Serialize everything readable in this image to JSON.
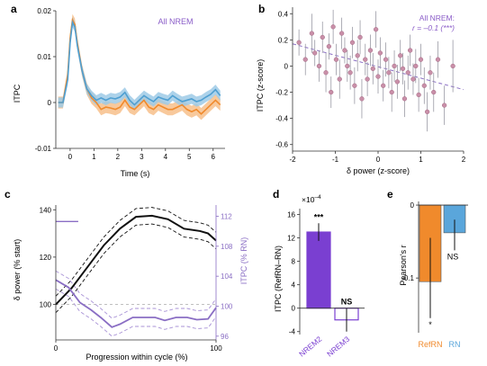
{
  "chart_data": [
    {
      "panel": "a",
      "type": "line",
      "ylabel": "ITPC",
      "xlabel": "Time (s)",
      "annotation": "All NREM",
      "xlim": [
        -0.6,
        6.5
      ],
      "ylim": [
        -0.01,
        0.02
      ],
      "xticks": [
        0,
        1,
        2,
        3,
        4,
        5,
        6
      ],
      "yticks": [
        -0.01,
        0,
        0.01,
        0.02
      ],
      "ytick_labels": [
        "-0.01",
        "0",
        "0.01",
        "0.02"
      ],
      "colors": {
        "orange": "#f08a2c",
        "blue": "#4f9fd1"
      },
      "series": [
        {
          "color": "orange",
          "x": [
            -0.5,
            -0.3,
            -0.1,
            0.0,
            0.1,
            0.2,
            0.3,
            0.5,
            0.7,
            0.9,
            1.1,
            1.3,
            1.5,
            1.7,
            1.9,
            2.1,
            2.3,
            2.5,
            2.7,
            2.9,
            3.1,
            3.3,
            3.5,
            3.7,
            3.9,
            4.1,
            4.3,
            4.5,
            4.7,
            4.9,
            5.1,
            5.3,
            5.5,
            5.7,
            5.9,
            6.1,
            6.3
          ],
          "y": [
            0.0,
            0.0,
            0.006,
            0.014,
            0.018,
            0.017,
            0.013,
            0.007,
            0.003,
            0.001,
            0.0,
            -0.0015,
            -0.001,
            -0.0012,
            -0.0015,
            -0.001,
            0.0005,
            -0.001,
            -0.0015,
            -0.0005,
            0.0005,
            -0.001,
            -0.0015,
            -0.0005,
            -0.001,
            -0.0015,
            -0.0015,
            -0.001,
            -0.0005,
            -0.0015,
            -0.002,
            -0.0015,
            -0.0025,
            -0.0015,
            -0.0005,
            0.0005,
            -0.0005
          ],
          "err": 0.0013
        },
        {
          "color": "blue",
          "x": [
            -0.5,
            -0.3,
            -0.1,
            0.0,
            0.1,
            0.2,
            0.3,
            0.5,
            0.7,
            0.9,
            1.1,
            1.3,
            1.5,
            1.7,
            1.9,
            2.1,
            2.3,
            2.5,
            2.7,
            2.9,
            3.1,
            3.3,
            3.5,
            3.7,
            3.9,
            4.1,
            4.3,
            4.5,
            4.7,
            4.9,
            5.1,
            5.3,
            5.5,
            5.7,
            5.9,
            6.1,
            6.3
          ],
          "y": [
            0.0,
            0.0,
            0.005,
            0.013,
            0.0175,
            0.0165,
            0.0125,
            0.007,
            0.003,
            0.0015,
            0.0005,
            0.001,
            0.0005,
            0.001,
            0.0008,
            0.0012,
            0.0022,
            0.0005,
            -0.0005,
            0.0005,
            0.0015,
            0.0008,
            0.0002,
            0.0012,
            0.0008,
            0.0005,
            0.0015,
            0.0008,
            0.0002,
            0.0005,
            0.0008,
            0.0002,
            0.0005,
            0.0012,
            0.0018,
            0.0028,
            0.0015
          ],
          "err": 0.0011
        }
      ]
    },
    {
      "panel": "b",
      "type": "scatter",
      "ylabel": "ITPC (z-score)",
      "xlabel": "δ power (z-score)",
      "annotation": [
        "All NREM:",
        "r = –0.1 (***)"
      ],
      "xlim": [
        -2,
        2
      ],
      "ylim": [
        -0.65,
        0.45
      ],
      "xticks": [
        -2,
        -1,
        0,
        1,
        2
      ],
      "yticks": [
        -0.6,
        -0.4,
        -0.2,
        0,
        0.2,
        0.4
      ],
      "ytick_labels": [
        "-0.6",
        "-0.4",
        "-0.2",
        "0",
        "0.2",
        "0.4"
      ],
      "point_color": "#c98fa8",
      "fit": {
        "x": [
          -2,
          2
        ],
        "y": [
          0.17,
          -0.18
        ]
      },
      "points": [
        [
          -1.85,
          0.18,
          0.1
        ],
        [
          -1.7,
          0.05,
          0.12
        ],
        [
          -1.55,
          0.25,
          0.15
        ],
        [
          -1.48,
          0.1,
          0.1
        ],
        [
          -1.38,
          0.0,
          0.12
        ],
        [
          -1.3,
          0.22,
          0.12
        ],
        [
          -1.22,
          -0.05,
          0.15
        ],
        [
          -1.15,
          0.15,
          0.1
        ],
        [
          -1.1,
          -0.2,
          0.12
        ],
        [
          -1.05,
          0.3,
          0.13
        ],
        [
          -0.98,
          0.05,
          0.12
        ],
        [
          -0.9,
          -0.1,
          0.15
        ],
        [
          -0.85,
          0.25,
          0.12
        ],
        [
          -0.78,
          0.12,
          0.1
        ],
        [
          -0.72,
          0.0,
          0.12
        ],
        [
          -0.65,
          -0.05,
          0.13
        ],
        [
          -0.6,
          0.18,
          0.12
        ],
        [
          -0.55,
          -0.15,
          0.14
        ],
        [
          -0.48,
          0.08,
          0.12
        ],
        [
          -0.42,
          0.22,
          0.13
        ],
        [
          -0.38,
          -0.25,
          0.15
        ],
        [
          -0.3,
          0.05,
          0.12
        ],
        [
          -0.25,
          -0.1,
          0.13
        ],
        [
          -0.18,
          0.12,
          0.12
        ],
        [
          -0.12,
          -0.02,
          0.12
        ],
        [
          -0.05,
          0.28,
          0.14
        ],
        [
          0.0,
          -0.08,
          0.13
        ],
        [
          0.05,
          0.1,
          0.12
        ],
        [
          0.12,
          -0.15,
          0.12
        ],
        [
          0.18,
          0.05,
          0.13
        ],
        [
          0.25,
          -0.05,
          0.12
        ],
        [
          0.32,
          -0.2,
          0.15
        ],
        [
          0.38,
          0.0,
          0.12
        ],
        [
          0.45,
          -0.12,
          0.13
        ],
        [
          0.52,
          0.08,
          0.12
        ],
        [
          0.58,
          -0.02,
          0.12
        ],
        [
          0.62,
          -0.25,
          0.14
        ],
        [
          0.7,
          -0.05,
          0.13
        ],
        [
          0.75,
          0.12,
          0.12
        ],
        [
          0.82,
          -0.1,
          0.12
        ],
        [
          0.88,
          0.0,
          0.13
        ],
        [
          0.95,
          -0.22,
          0.13
        ],
        [
          1.0,
          0.05,
          0.12
        ],
        [
          1.08,
          -0.15,
          0.14
        ],
        [
          1.15,
          -0.35,
          0.15
        ],
        [
          1.22,
          -0.05,
          0.13
        ],
        [
          1.3,
          -0.2,
          0.15
        ],
        [
          1.4,
          0.05,
          0.14
        ],
        [
          1.55,
          -0.3,
          0.15
        ],
        [
          1.75,
          0.0,
          0.2
        ]
      ]
    },
    {
      "panel": "c",
      "type": "line",
      "ylabel": "δ power (% start)",
      "ylabel_right": "ITPC (% RN)",
      "xlabel": "Progression within cycle (%)",
      "xlim": [
        0,
        100
      ],
      "ylim": [
        85,
        142
      ],
      "ylim_right": [
        95.5,
        113.5
      ],
      "xticks": [
        0,
        100
      ],
      "yticks": [
        100,
        120,
        140
      ],
      "yticks_right": [
        96,
        100,
        104,
        108,
        112
      ],
      "colors": {
        "black": "#111111",
        "purple": "#8a6ec4",
        "gray": "#999999"
      },
      "series": [
        {
          "color": "black",
          "axis": "left",
          "x": [
            0,
            10,
            20,
            30,
            40,
            50,
            60,
            70,
            80,
            90,
            95,
            100
          ],
          "y": [
            100,
            107,
            116,
            125,
            132,
            137,
            137.5,
            136,
            132,
            131,
            130,
            127
          ],
          "band": 3.5
        },
        {
          "color": "purple",
          "axis": "right",
          "x": [
            0,
            8,
            15,
            22,
            28,
            35,
            40,
            48,
            55,
            62,
            68,
            75,
            82,
            88,
            95,
            100
          ],
          "y": [
            103.5,
            102.5,
            100.5,
            99.5,
            98.5,
            97.2,
            97.6,
            98.5,
            98.5,
            98.5,
            98.1,
            98.5,
            98.5,
            98.2,
            98.3,
            99.8
          ],
          "band": 1.2
        }
      ],
      "reference_segment": {
        "x": [
          0,
          14
        ],
        "y_right": 111.3
      },
      "reference_dashed_y": 100
    },
    {
      "panel": "d",
      "type": "bar",
      "ylabel": "ITPC (RefRN–RN)",
      "multiplier": "×10",
      "multiplier_exp": "–4",
      "categories": [
        "NREM2",
        "NREM3"
      ],
      "values": [
        13,
        -2
      ],
      "errors": [
        1.5,
        2.0
      ],
      "significance": [
        "***",
        "NS"
      ],
      "colors": [
        "#7a3fd1",
        "#ffffff"
      ],
      "edge_colors": [
        "#7a3fd1",
        "#7a3fd1"
      ],
      "ylim": [
        -4.5,
        17
      ],
      "yticks": [
        -4,
        0,
        4,
        8,
        12,
        16
      ],
      "ytick_labels": [
        "-4",
        "0",
        "4",
        "8",
        "12",
        "16"
      ]
    },
    {
      "panel": "e",
      "type": "bar",
      "ylabel": "Pearson's r",
      "categories": [
        "RefRN",
        "RN"
      ],
      "values": [
        -0.105,
        -0.038
      ],
      "err_low": [
        -0.155,
        -0.062
      ],
      "err_high": [
        -0.045,
        -0.02
      ],
      "significance": [
        "*",
        "NS"
      ],
      "colors": [
        "#f08a2c",
        "#5aa6db"
      ],
      "ylim": [
        -0.175,
        0.005
      ],
      "yticks": [
        -0.1,
        0
      ],
      "ytick_labels": [
        "-0.1",
        "0"
      ]
    }
  ]
}
